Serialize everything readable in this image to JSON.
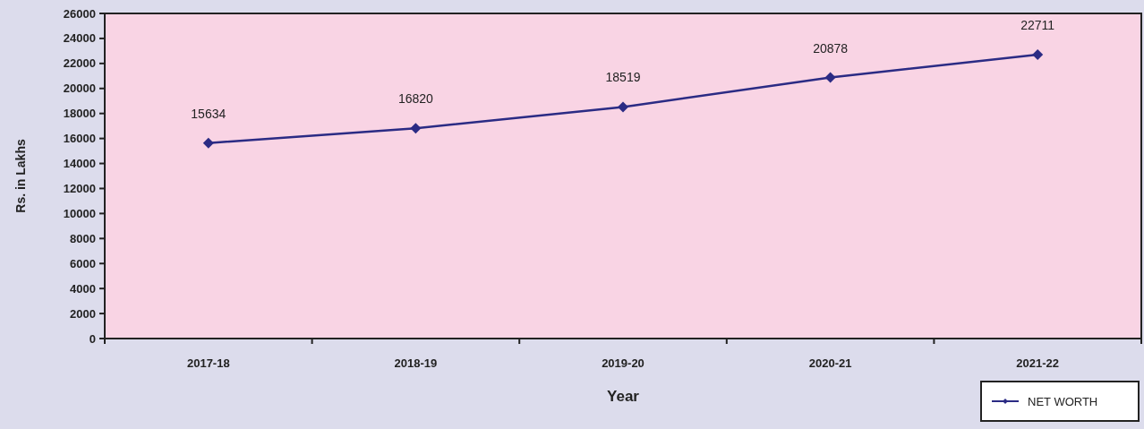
{
  "chart_data": {
    "type": "line",
    "xlabel": "Year",
    "ylabel": "Rs. in Lakhs",
    "categories": [
      "2017-18",
      "2018-19",
      "2019-20",
      "2020-21",
      "2021-22"
    ],
    "series": [
      {
        "name": "NET WORTH",
        "color": "#2b2b84",
        "values": [
          15634,
          16820,
          18519,
          20878,
          22711
        ]
      }
    ],
    "ylim": [
      0,
      26000
    ],
    "yticks": [
      0,
      2000,
      4000,
      6000,
      8000,
      10000,
      12000,
      14000,
      16000,
      18000,
      20000,
      22000,
      24000,
      26000
    ],
    "data_labels": true,
    "legend": "bottom right",
    "marker": "diamond",
    "line_style": "solid",
    "grid": false
  }
}
